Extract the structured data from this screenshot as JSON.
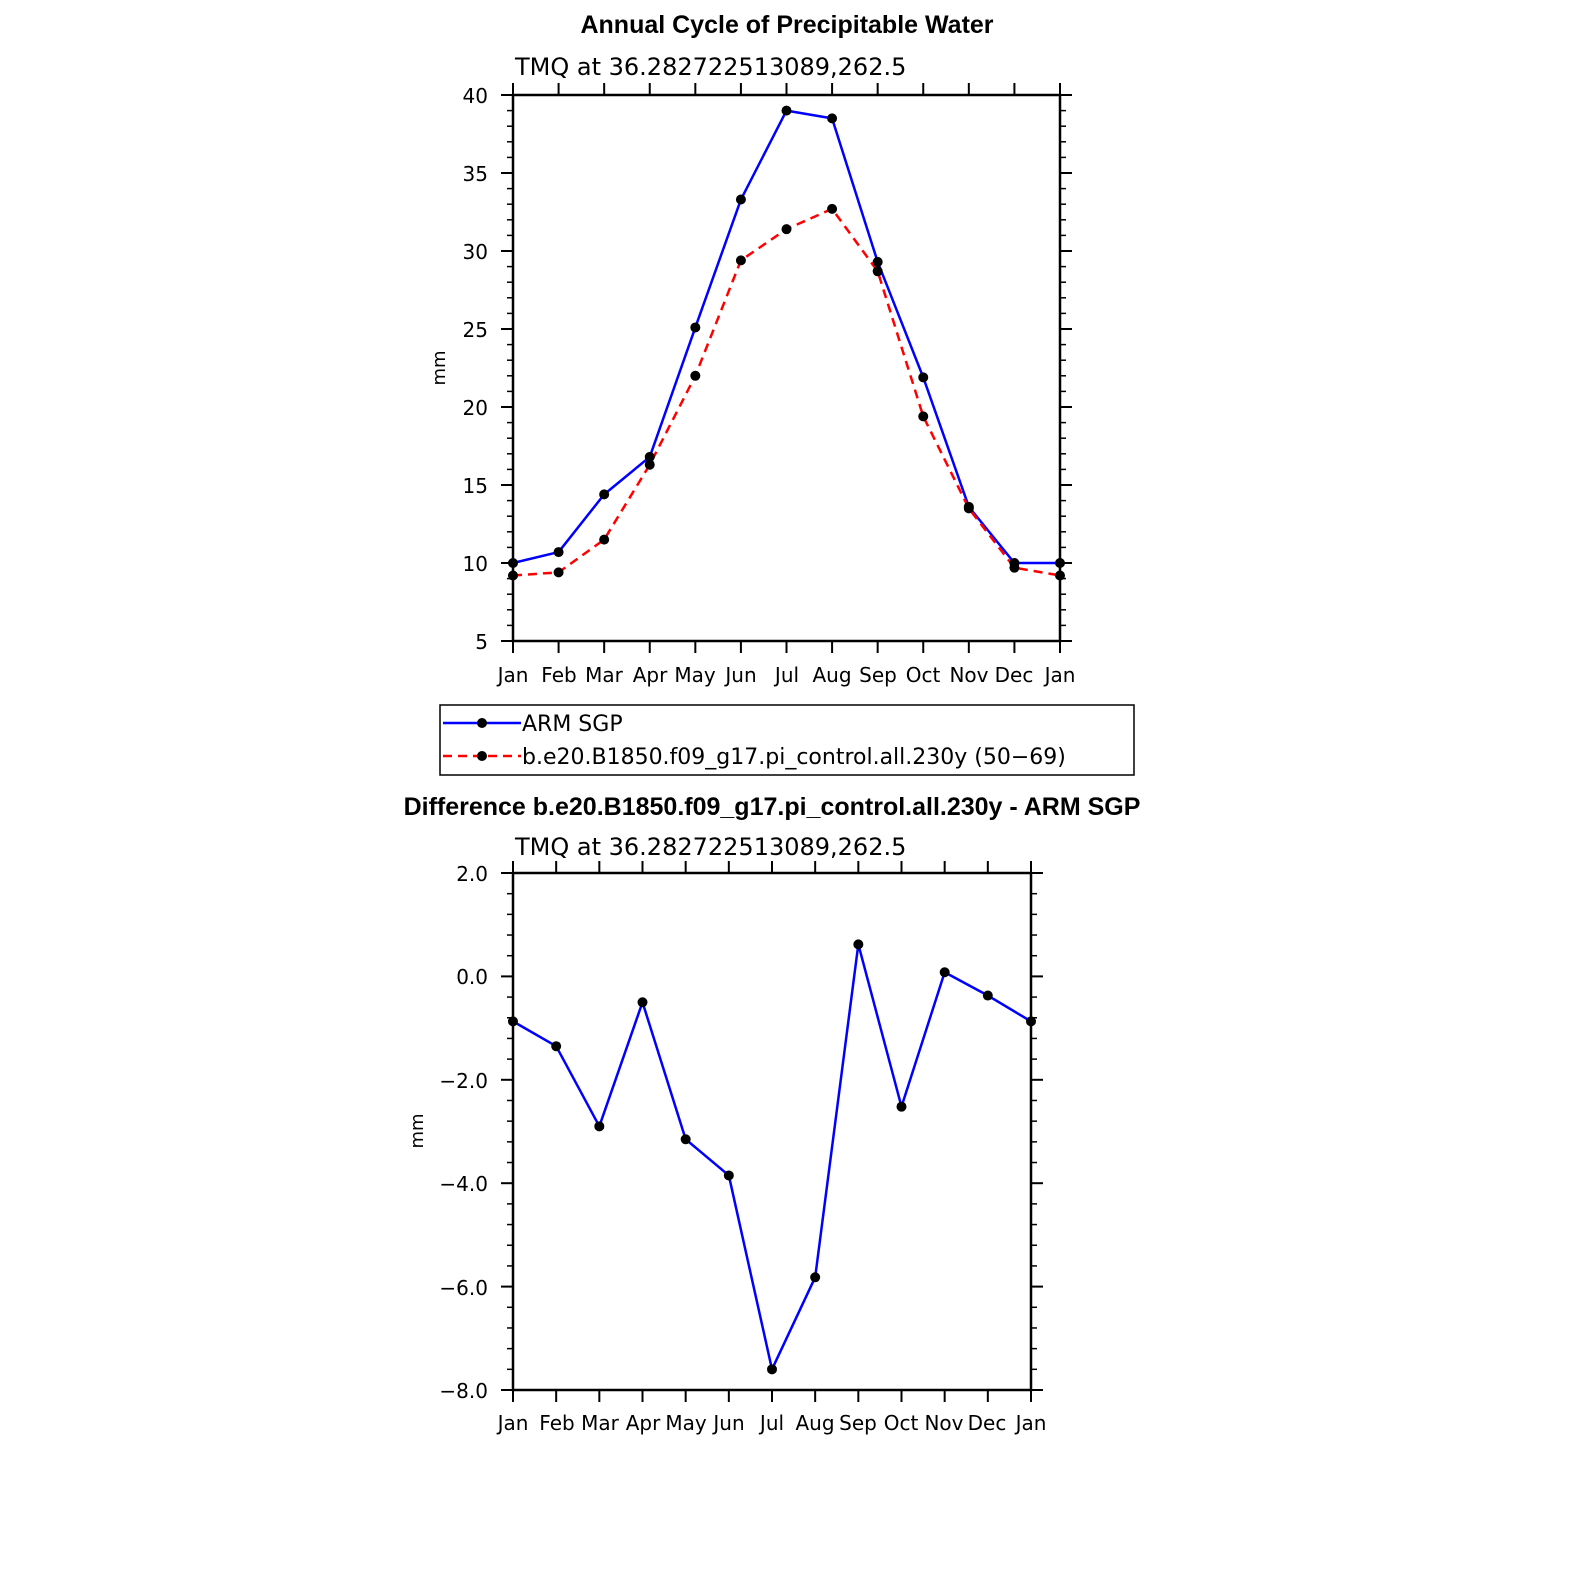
{
  "chart_data": [
    {
      "type": "line",
      "title": "Annual Cycle of Precipitable Water",
      "subtitle": "TMQ  at  36.282722513089,262.5",
      "xlabel": "",
      "ylabel": "mm",
      "categories": [
        "Jan",
        "Feb",
        "Mar",
        "Apr",
        "May",
        "Jun",
        "Jul",
        "Aug",
        "Sep",
        "Oct",
        "Nov",
        "Dec",
        "Jan"
      ],
      "ylim": [
        5,
        40
      ],
      "yticks": [
        5,
        10,
        15,
        20,
        25,
        30,
        35,
        40
      ],
      "ytick_labels": [
        "5",
        "10",
        "15",
        "20",
        "25",
        "30",
        "35",
        "40"
      ],
      "series": [
        {
          "name": "ARM  SGP",
          "color": "#0000ff",
          "dash": "solid",
          "values": [
            10.0,
            10.7,
            14.4,
            16.8,
            25.1,
            33.3,
            39.0,
            38.5,
            29.3,
            21.9,
            13.6,
            10.0,
            10.0
          ]
        },
        {
          "name": "b.e20.B1850.f09_g17.pi_control.all.230y (50−69)",
          "color": "#ff0000",
          "dash": "dashed",
          "values": [
            9.2,
            9.4,
            11.5,
            16.3,
            22.0,
            29.4,
            31.4,
            32.7,
            28.7,
            19.4,
            13.5,
            9.7,
            9.2
          ]
        }
      ],
      "legend": {
        "placement": "bottom",
        "entries": [
          "ARM  SGP",
          "b.e20.B1850.f09_g17.pi_control.all.230y (50−69)"
        ]
      }
    },
    {
      "type": "line",
      "title": "Difference b.e20.B1850.f09_g17.pi_control.all.230y - ARM SGP",
      "subtitle": "TMQ  at  36.282722513089,262.5",
      "xlabel": "",
      "ylabel": "mm",
      "categories": [
        "Jan",
        "Feb",
        "Mar",
        "Apr",
        "May",
        "Jun",
        "Jul",
        "Aug",
        "Sep",
        "Oct",
        "Nov",
        "Dec",
        "Jan"
      ],
      "ylim": [
        -8,
        2
      ],
      "yticks": [
        -8,
        -6,
        -4,
        -2,
        0,
        2
      ],
      "ytick_labels": [
        "−8.0",
        "−6.0",
        "−4.0",
        "−2.0",
        "0.0",
        "2.0"
      ],
      "series": [
        {
          "name": "Difference",
          "color": "#0000ff",
          "dash": "solid",
          "values": [
            -0.87,
            -1.35,
            -2.9,
            -0.5,
            -3.15,
            -3.85,
            -7.6,
            -5.82,
            0.62,
            -2.52,
            0.08,
            -0.37,
            -0.87
          ]
        }
      ]
    }
  ]
}
